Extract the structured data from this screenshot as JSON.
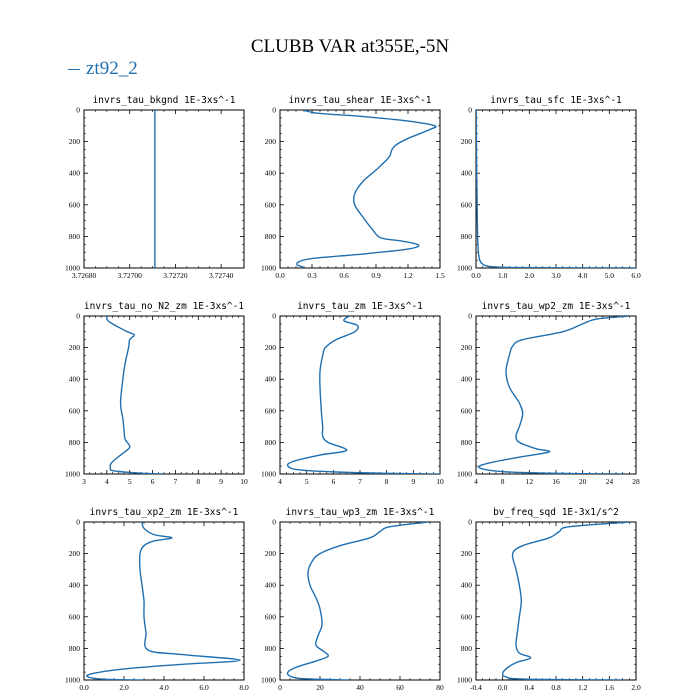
{
  "title": "CLUBB VAR at355E,-5N",
  "legend": {
    "series_name": "zt92_2",
    "color": "#1f6fb0"
  },
  "chart_data": [
    {
      "type": "line",
      "title": "invrs_tau_bkgnd   1E-3xs^-1",
      "xlim": [
        3.7268,
        3.7275
      ],
      "ylim": [
        1000,
        0
      ],
      "xticks": [
        "3.72680",
        "3.72700",
        "3.72720",
        "3.72740"
      ],
      "xtick_values": [
        3.7268,
        3.727,
        3.7272,
        3.7274
      ],
      "yticks": [
        "0",
        "200",
        "400",
        "600",
        "800",
        "1000"
      ],
      "ytick_values": [
        0,
        200,
        400,
        600,
        800,
        1000
      ],
      "series": [
        {
          "x": [
            3.72711,
            3.72711
          ],
          "y": [
            0,
            1000
          ]
        }
      ]
    },
    {
      "type": "line",
      "title": "invrs_tau_shear   1E-3xs^-1",
      "xlim": [
        0,
        1.5
      ],
      "ylim": [
        1000,
        0
      ],
      "xticks": [
        "0.0",
        "0.3",
        "0.6",
        "0.9",
        "1.2",
        "1.5"
      ],
      "xtick_values": [
        0,
        0.3,
        0.6,
        0.9,
        1.2,
        1.5
      ],
      "yticks": [
        "0",
        "200",
        "400",
        "600",
        "800",
        "1000"
      ],
      "ytick_values": [
        0,
        200,
        400,
        600,
        800,
        1000
      ],
      "series": [
        {
          "x": [
            0.22,
            0.35,
            0.75,
            1.2,
            1.45,
            1.4,
            1.2,
            1.09,
            1.05,
            1.02,
            0.9,
            0.78,
            0.7,
            0.7,
            0.78,
            0.87,
            0.95,
            1.15,
            1.3,
            1.2,
            0.8,
            0.3,
            0.18,
            0.16,
            0.2,
            0.22
          ],
          "y": [
            0,
            20,
            40,
            70,
            100,
            125,
            180,
            220,
            250,
            300,
            380,
            450,
            530,
            600,
            680,
            760,
            810,
            830,
            855,
            880,
            910,
            940,
            960,
            980,
            990,
            1000
          ]
        }
      ]
    },
    {
      "type": "line",
      "title": "invrs_tau_sfc   1E-3xs^-1",
      "xlim": [
        0,
        6
      ],
      "ylim": [
        1000,
        0
      ],
      "xticks": [
        "0.0",
        "1.0",
        "2.0",
        "3.0",
        "4.0",
        "5.0",
        "6.0"
      ],
      "xtick_values": [
        0,
        1,
        2,
        3,
        4,
        5,
        6
      ],
      "yticks": [
        "0",
        "200",
        "400",
        "600",
        "800",
        "1000"
      ],
      "ytick_values": [
        0,
        200,
        400,
        600,
        800,
        1000
      ],
      "series": [
        {
          "x": [
            0.01,
            0.02,
            0.04,
            0.06,
            0.09,
            0.14,
            0.25,
            0.5,
            1.5,
            6.0
          ],
          "y": [
            0,
            300,
            600,
            800,
            900,
            950,
            975,
            990,
            997,
            1000
          ]
        }
      ]
    },
    {
      "type": "line",
      "title": "invrs_tau_no_N2_zm   1E-3xs^-1",
      "xlim": [
        3,
        10
      ],
      "ylim": [
        1000,
        0
      ],
      "xticks": [
        "3",
        "4",
        "5",
        "6",
        "7",
        "8",
        "9",
        "10"
      ],
      "xtick_values": [
        3,
        4,
        5,
        6,
        7,
        8,
        9,
        10
      ],
      "yticks": [
        "0",
        "200",
        "400",
        "600",
        "800",
        "1000"
      ],
      "ytick_values": [
        0,
        200,
        400,
        600,
        800,
        1000
      ],
      "series": [
        {
          "x": [
            4.0,
            4.05,
            4.5,
            4.9,
            5.2,
            5.0,
            4.95,
            4.8,
            4.7,
            4.6,
            4.7,
            4.75,
            4.8,
            5.0,
            4.6,
            4.2,
            4.15,
            4.3,
            5.5,
            6.5
          ],
          "y": [
            0,
            30,
            70,
            100,
            120,
            150,
            200,
            300,
            400,
            550,
            650,
            720,
            780,
            830,
            880,
            930,
            960,
            980,
            995,
            1000
          ]
        }
      ]
    },
    {
      "type": "line",
      "title": "invrs_tau_zm   1E-3xs^-1",
      "xlim": [
        4,
        10
      ],
      "ylim": [
        1000,
        0
      ],
      "xticks": [
        "4",
        "5",
        "6",
        "7",
        "8",
        "9",
        "10"
      ],
      "xtick_values": [
        4,
        5,
        6,
        7,
        8,
        9,
        10
      ],
      "yticks": [
        "0",
        "200",
        "400",
        "600",
        "800",
        "1000"
      ],
      "ytick_values": [
        0,
        200,
        400,
        600,
        800,
        1000
      ],
      "series": [
        {
          "x": [
            6.6,
            6.4,
            6.9,
            6.8,
            6.1,
            5.7,
            5.6,
            5.5,
            5.5,
            5.55,
            5.6,
            5.6,
            5.8,
            6.5,
            5.5,
            4.5,
            4.3,
            4.8,
            7.0,
            10.0
          ],
          "y": [
            0,
            30,
            60,
            100,
            150,
            200,
            250,
            350,
            450,
            600,
            700,
            760,
            800,
            850,
            880,
            920,
            950,
            975,
            992,
            1000
          ]
        }
      ]
    },
    {
      "type": "line",
      "title": "invrs_tau_wp2_zm   1E-3xs^-1",
      "xlim": [
        4,
        28
      ],
      "ylim": [
        1000,
        0
      ],
      "xticks": [
        "4",
        "8",
        "12",
        "16",
        "20",
        "24",
        "28"
      ],
      "xtick_values": [
        4,
        8,
        12,
        16,
        20,
        24,
        28
      ],
      "yticks": [
        "0",
        "200",
        "400",
        "600",
        "800",
        "1000"
      ],
      "ytick_values": [
        0,
        200,
        400,
        600,
        800,
        1000
      ],
      "series": [
        {
          "x": [
            27.0,
            22.0,
            20.0,
            17.0,
            11.0,
            9.5,
            9.0,
            8.5,
            9.0,
            10.5,
            11.0,
            10.5,
            10.0,
            10.5,
            13.0,
            15.0,
            11.0,
            6.0,
            4.5,
            8.0,
            15.0,
            26.0
          ],
          "y": [
            0,
            20,
            50,
            100,
            150,
            190,
            250,
            350,
            450,
            550,
            620,
            700,
            760,
            800,
            840,
            860,
            890,
            930,
            960,
            985,
            995,
            1000
          ]
        }
      ]
    },
    {
      "type": "line",
      "title": "invrs_tau_xp2_zm   1E-3xs^-1",
      "xlim": [
        0,
        8
      ],
      "ylim": [
        1000,
        0
      ],
      "xticks": [
        "0.0",
        "2.0",
        "4.0",
        "6.0",
        "8.0"
      ],
      "xtick_values": [
        0,
        2,
        4,
        6,
        8
      ],
      "yticks": [
        "0",
        "200",
        "400",
        "600",
        "800",
        "1000"
      ],
      "ytick_values": [
        0,
        200,
        400,
        600,
        800,
        1000
      ],
      "series": [
        {
          "x": [
            2.9,
            3.0,
            3.5,
            4.4,
            3.5,
            3.0,
            2.8,
            2.8,
            2.9,
            3.0,
            3.0,
            3.1,
            3.2,
            5.0,
            7.8,
            5.0,
            2.0,
            0.4,
            0.2,
            1.0,
            3.0
          ],
          "y": [
            0,
            40,
            80,
            100,
            120,
            150,
            200,
            300,
            400,
            500,
            600,
            700,
            810,
            840,
            875,
            900,
            930,
            960,
            980,
            995,
            1000
          ]
        }
      ]
    },
    {
      "type": "line",
      "title": "invrs_tau_wp3_zm   1E-3xs^-1",
      "xlim": [
        0,
        80
      ],
      "ylim": [
        1000,
        0
      ],
      "xticks": [
        "0",
        "20",
        "40",
        "60",
        "80"
      ],
      "xtick_values": [
        0,
        20,
        40,
        60,
        80
      ],
      "yticks": [
        "0",
        "200",
        "400",
        "600",
        "800",
        "1000"
      ],
      "ytick_values": [
        0,
        200,
        400,
        600,
        800,
        1000
      ],
      "series": [
        {
          "x": [
            74.0,
            55.0,
            50.0,
            45.0,
            30.0,
            20.0,
            16.0,
            14.0,
            15.0,
            18.0,
            20.0,
            21.0,
            19.0,
            18.0,
            22.0,
            24.0,
            18.0,
            8.0,
            4.0,
            5.0,
            12.0,
            35.0
          ],
          "y": [
            0,
            30,
            60,
            100,
            150,
            200,
            250,
            320,
            400,
            480,
            550,
            650,
            720,
            780,
            820,
            850,
            880,
            920,
            950,
            975,
            992,
            1000
          ]
        }
      ]
    },
    {
      "type": "line",
      "title": "bv_freq_sqd   1E-3x1/s^2",
      "xlim": [
        -0.4,
        2.0
      ],
      "ylim": [
        1000,
        0
      ],
      "xticks": [
        "-0.4",
        "0.0",
        "0.4",
        "0.8",
        "1.2",
        "1.6",
        "2.0"
      ],
      "xtick_values": [
        -0.4,
        0,
        0.4,
        0.8,
        1.2,
        1.6,
        2.0
      ],
      "yticks": [
        "0",
        "200",
        "400",
        "600",
        "800",
        "1000"
      ],
      "ytick_values": [
        0,
        200,
        400,
        600,
        800,
        1000
      ],
      "series": [
        {
          "x": [
            1.9,
            1.0,
            0.85,
            0.7,
            0.3,
            0.15,
            0.2,
            0.25,
            0.28,
            0.25,
            0.22,
            0.2,
            0.25,
            0.42,
            0.2,
            0.05,
            0.0,
            0.05,
            0.3,
            1.8
          ],
          "y": [
            0,
            30,
            60,
            100,
            150,
            200,
            300,
            400,
            500,
            600,
            700,
            780,
            830,
            860,
            890,
            930,
            960,
            980,
            994,
            1000
          ]
        }
      ]
    }
  ]
}
